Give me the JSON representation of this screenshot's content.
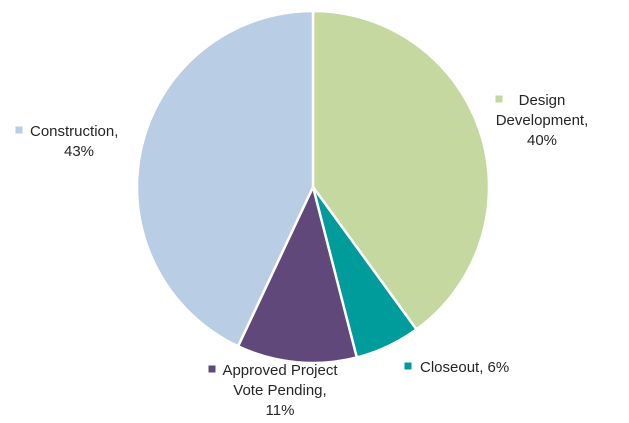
{
  "chart_data": {
    "type": "pie",
    "title": "",
    "legend": "none",
    "slices": [
      {
        "category": "Design Development",
        "value": 40,
        "value_label": "40%",
        "color": "#c5d89f",
        "label_lines": [
          "Design",
          "Development,",
          "40%"
        ]
      },
      {
        "category": "Closeout",
        "value": 6,
        "value_label": "6%",
        "color": "#009b9b",
        "label_lines": [
          "Closeout, 6%"
        ]
      },
      {
        "category": "Approved Project Vote Pending",
        "value": 11,
        "value_label": "11%",
        "color": "#60497a",
        "label_lines": [
          "Approved Project",
          "Vote Pending,",
          "11%"
        ]
      },
      {
        "category": "Construction",
        "value": 43,
        "value_label": "43%",
        "color": "#b9cde5",
        "label_lines": [
          "Construction,",
          "43%"
        ]
      }
    ]
  }
}
